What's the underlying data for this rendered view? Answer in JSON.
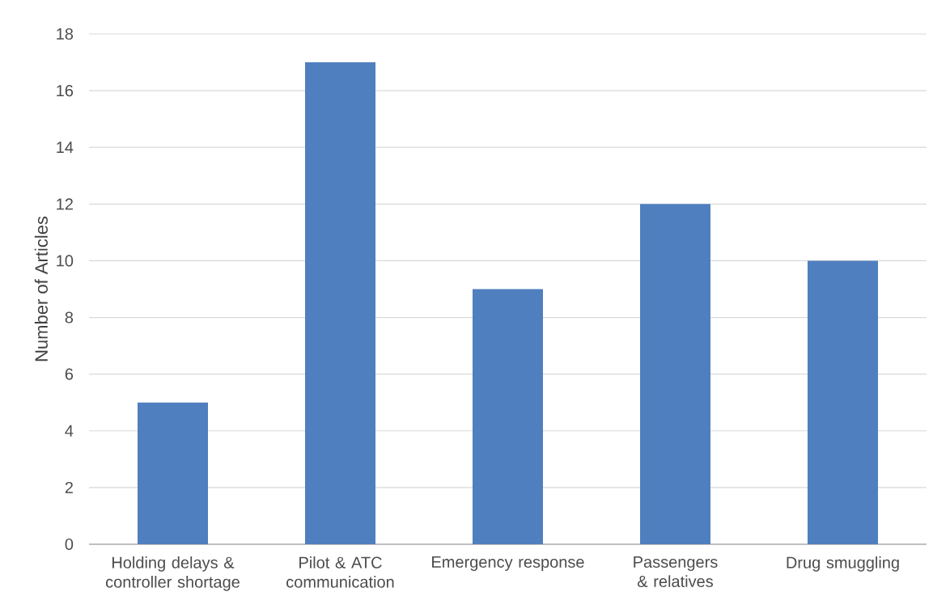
{
  "chart_data": {
    "type": "bar",
    "ylabel": "Number of Articles",
    "categories": [
      "Holding delays & controller shortage",
      "Pilot & ATC communication",
      "Emergency response",
      "Passengers & relatives",
      "Drug smuggling"
    ],
    "values": [
      5,
      17,
      9,
      12,
      10
    ],
    "color": "#4f7fbf",
    "ylim": [
      0,
      18
    ],
    "yticks": [
      0,
      2,
      4,
      6,
      8,
      10,
      12,
      14,
      16,
      18
    ],
    "grid": "y"
  }
}
